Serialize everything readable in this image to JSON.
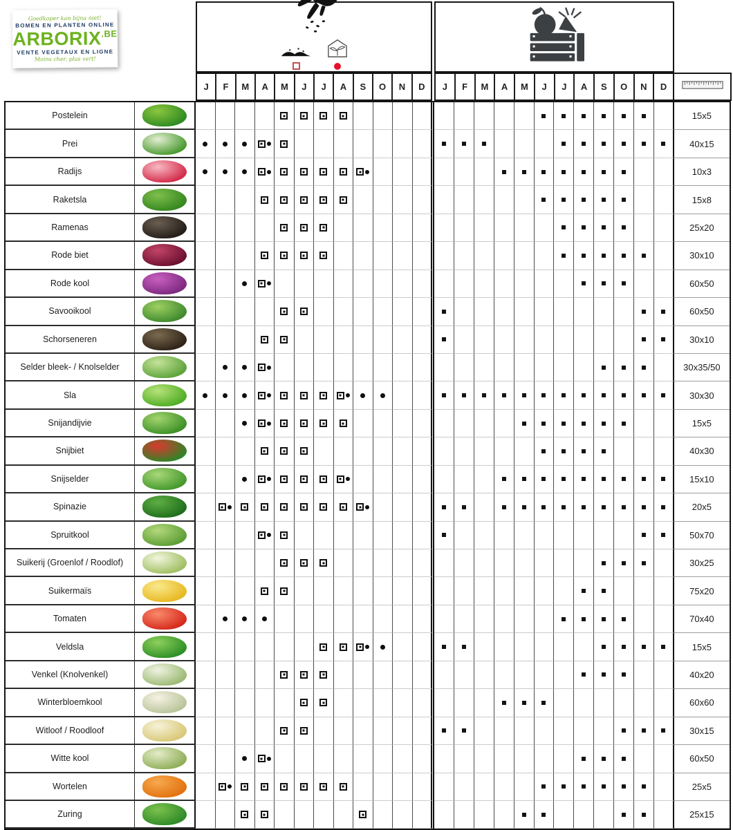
{
  "logo": {
    "tagline_top": "Goedkoper kan bijna niet!",
    "line_nl": "BOMEN EN PLANTEN ONLINE",
    "brand": "ARBORIX",
    "brand_tld": ".BE",
    "line_fr": "VENTE VEGETAUX EN LIGNE",
    "tagline_bottom": "Moins cher, plus vert!"
  },
  "legend": {
    "sow_outdoor_square_color": "#c0504d",
    "sow_indoor_dot_color": "#e8112d",
    "marker_key": {
      "b": "open-square-marker: direct sowing outdoors",
      "d": "dot-marker: sowing under glass / indoors",
      "bd": "open-square plus dot",
      "s": "filled-square-marker: harvest month"
    }
  },
  "header_icons": [
    "hand-sowing-seeds-icon",
    "soil-mound-icon",
    "greenhouse-icon",
    "harvest-crate-icon",
    "ruler-icon"
  ],
  "chart_data": {
    "type": "table",
    "title": "Sowing and harvesting calendar with plant spacing (Arborix.be)",
    "months": [
      "J",
      "F",
      "M",
      "A",
      "M",
      "J",
      "J",
      "A",
      "S",
      "O",
      "N",
      "D"
    ],
    "column_groups": [
      "sowing",
      "harvest",
      "spacing"
    ],
    "rows": [
      {
        "name": "Postelein",
        "spacing": "15x5",
        "photo": "#2e8b22",
        "photo_hi": "#8cc63f",
        "sow": [
          "",
          "",
          "",
          "",
          "b",
          "b",
          "b",
          "b",
          "",
          "",
          "",
          ""
        ],
        "harvest": [
          "",
          "",
          "",
          "",
          "",
          "s",
          "s",
          "s",
          "s",
          "s",
          "s",
          ""
        ]
      },
      {
        "name": "Prei",
        "spacing": "40x15",
        "photo": "#4a9a30",
        "photo_hi": "#e4eed2",
        "sow": [
          "d",
          "d",
          "d",
          "bd",
          "b",
          "",
          "",
          "",
          "",
          "",
          "",
          ""
        ],
        "harvest": [
          "s",
          "s",
          "s",
          "",
          "",
          "",
          "s",
          "s",
          "s",
          "s",
          "s",
          "s"
        ]
      },
      {
        "name": "Radijs",
        "spacing": "10x3",
        "photo": "#d22b49",
        "photo_hi": "#f9b9c4",
        "sow": [
          "d",
          "d",
          "d",
          "bd",
          "b",
          "b",
          "b",
          "b",
          "bd",
          "",
          "",
          ""
        ],
        "harvest": [
          "",
          "",
          "",
          "s",
          "s",
          "s",
          "s",
          "s",
          "s",
          "s",
          "",
          ""
        ]
      },
      {
        "name": "Raketsla",
        "spacing": "15x8",
        "photo": "#35871f",
        "photo_hi": "#7fbf4d",
        "sow": [
          "",
          "",
          "",
          "b",
          "b",
          "b",
          "b",
          "b",
          "",
          "",
          "",
          ""
        ],
        "harvest": [
          "",
          "",
          "",
          "",
          "",
          "s",
          "s",
          "s",
          "s",
          "s",
          "",
          ""
        ]
      },
      {
        "name": "Ramenas",
        "spacing": "25x20",
        "photo": "#241d18",
        "photo_hi": "#6b5f52",
        "sow": [
          "",
          "",
          "",
          "",
          "b",
          "b",
          "b",
          "",
          "",
          "",
          "",
          ""
        ],
        "harvest": [
          "",
          "",
          "",
          "",
          "",
          "",
          "s",
          "s",
          "s",
          "s",
          "",
          ""
        ]
      },
      {
        "name": "Rode biet",
        "spacing": "30x10",
        "photo": "#6d1030",
        "photo_hi": "#c24468",
        "sow": [
          "",
          "",
          "",
          "b",
          "b",
          "b",
          "b",
          "",
          "",
          "",
          "",
          ""
        ],
        "harvest": [
          "",
          "",
          "",
          "",
          "",
          "",
          "s",
          "s",
          "s",
          "s",
          "s",
          ""
        ]
      },
      {
        "name": "Rode kool",
        "spacing": "60x50",
        "photo": "#7d2a80",
        "photo_hi": "#c95fc0",
        "sow": [
          "",
          "",
          "d",
          "bd",
          "",
          "",
          "",
          "",
          "",
          "",
          "",
          ""
        ],
        "harvest": [
          "",
          "",
          "",
          "",
          "",
          "",
          "",
          "s",
          "s",
          "s",
          "",
          ""
        ]
      },
      {
        "name": "Savooikool",
        "spacing": "60x50",
        "photo": "#3f8a2e",
        "photo_hi": "#9ecf62",
        "sow": [
          "",
          "",
          "",
          "",
          "b",
          "b",
          "",
          "",
          "",
          "",
          "",
          ""
        ],
        "harvest": [
          "s",
          "",
          "",
          "",
          "",
          "",
          "",
          "",
          "",
          "",
          "s",
          "s"
        ]
      },
      {
        "name": "Schorseneren",
        "spacing": "30x10",
        "photo": "#2f2317",
        "photo_hi": "#7a6a50",
        "sow": [
          "",
          "",
          "",
          "b",
          "b",
          "",
          "",
          "",
          "",
          "",
          "",
          ""
        ],
        "harvest": [
          "s",
          "",
          "",
          "",
          "",
          "",
          "",
          "",
          "",
          "",
          "s",
          "s"
        ]
      },
      {
        "name": "Selder bleek- / Knolselder",
        "spacing": "30x35/50",
        "photo": "#5da33a",
        "photo_hi": "#c6e39a",
        "sow": [
          "",
          "d",
          "d",
          "bd",
          "",
          "",
          "",
          "",
          "",
          "",
          "",
          ""
        ],
        "harvest": [
          "",
          "",
          "",
          "",
          "",
          "",
          "",
          "",
          "s",
          "s",
          "s",
          ""
        ]
      },
      {
        "name": "Sla",
        "spacing": "30x30",
        "photo": "#4fae25",
        "photo_hi": "#b8e27a",
        "sow": [
          "d",
          "d",
          "d",
          "bd",
          "b",
          "b",
          "b",
          "bd",
          "d",
          "d",
          "",
          ""
        ],
        "harvest": [
          "s",
          "s",
          "s",
          "s",
          "s",
          "s",
          "s",
          "s",
          "s",
          "s",
          "s",
          "s"
        ]
      },
      {
        "name": "Snijandijvie",
        "spacing": "15x5",
        "photo": "#3d9127",
        "photo_hi": "#a3d46e",
        "sow": [
          "",
          "",
          "d",
          "bd",
          "b",
          "b",
          "b",
          "b",
          "",
          "",
          "",
          ""
        ],
        "harvest": [
          "",
          "",
          "",
          "",
          "s",
          "s",
          "s",
          "s",
          "s",
          "s",
          "",
          ""
        ]
      },
      {
        "name": "Snijbiet",
        "spacing": "40x30",
        "photo": "#2f8526",
        "photo_hi": "#d9392f",
        "sow": [
          "",
          "",
          "",
          "b",
          "b",
          "b",
          "",
          "",
          "",
          "",
          "",
          ""
        ],
        "harvest": [
          "",
          "",
          "",
          "",
          "",
          "s",
          "s",
          "s",
          "s",
          "",
          "",
          ""
        ]
      },
      {
        "name": "Snijselder",
        "spacing": "15x10",
        "photo": "#44982c",
        "photo_hi": "#a8d878",
        "sow": [
          "",
          "",
          "d",
          "bd",
          "b",
          "b",
          "b",
          "bd",
          "",
          "",
          "",
          ""
        ],
        "harvest": [
          "",
          "",
          "",
          "s",
          "s",
          "s",
          "s",
          "s",
          "s",
          "s",
          "s",
          "s"
        ]
      },
      {
        "name": "Spinazie",
        "spacing": "20x5",
        "photo": "#1f6f1d",
        "photo_hi": "#5fae44",
        "sow": [
          "",
          "bd",
          "b",
          "b",
          "b",
          "b",
          "b",
          "b",
          "bd",
          "",
          "",
          ""
        ],
        "harvest": [
          "s",
          "s",
          "",
          "s",
          "s",
          "s",
          "s",
          "s",
          "s",
          "s",
          "s",
          "s"
        ]
      },
      {
        "name": "Spruitkool",
        "spacing": "50x70",
        "photo": "#5d9e35",
        "photo_hi": "#b4d87c",
        "sow": [
          "",
          "",
          "",
          "bd",
          "b",
          "",
          "",
          "",
          "",
          "",
          "",
          ""
        ],
        "harvest": [
          "s",
          "",
          "",
          "",
          "",
          "",
          "",
          "",
          "",
          "",
          "s",
          "s"
        ]
      },
      {
        "name": "Suikerij (Groenlof / Roodlof)",
        "spacing": "30x25",
        "photo": "#9fbf63",
        "photo_hi": "#f2f6dd",
        "sow": [
          "",
          "",
          "",
          "",
          "b",
          "b",
          "b",
          "",
          "",
          "",
          "",
          ""
        ],
        "harvest": [
          "",
          "",
          "",
          "",
          "",
          "",
          "",
          "",
          "s",
          "s",
          "s",
          ""
        ]
      },
      {
        "name": "Suikermaïs",
        "spacing": "75x20",
        "photo": "#e8b821",
        "photo_hi": "#f9e98c",
        "sow": [
          "",
          "",
          "",
          "b",
          "b",
          "",
          "",
          "",
          "",
          "",
          "",
          ""
        ],
        "harvest": [
          "",
          "",
          "",
          "",
          "",
          "",
          "",
          "s",
          "s",
          "",
          "",
          ""
        ]
      },
      {
        "name": "Tomaten",
        "spacing": "70x40",
        "photo": "#d6291c",
        "photo_hi": "#f98a6a",
        "sow": [
          "",
          "d",
          "d",
          "d",
          "",
          "",
          "",
          "",
          "",
          "",
          "",
          ""
        ],
        "harvest": [
          "",
          "",
          "",
          "",
          "",
          "",
          "s",
          "s",
          "s",
          "s",
          "",
          ""
        ]
      },
      {
        "name": "Veldsla",
        "spacing": "15x5",
        "photo": "#2f8f25",
        "photo_hi": "#8ed05e",
        "sow": [
          "",
          "",
          "",
          "",
          "",
          "",
          "b",
          "b",
          "bd",
          "d",
          "",
          ""
        ],
        "harvest": [
          "s",
          "s",
          "",
          "",
          "",
          "",
          "",
          "",
          "s",
          "s",
          "s",
          "s"
        ]
      },
      {
        "name": "Venkel (Knolvenkel)",
        "spacing": "40x20",
        "photo": "#9cba74",
        "photo_hi": "#f0f3e2",
        "sow": [
          "",
          "",
          "",
          "",
          "b",
          "b",
          "b",
          "",
          "",
          "",
          "",
          ""
        ],
        "harvest": [
          "",
          "",
          "",
          "",
          "",
          "",
          "",
          "s",
          "s",
          "s",
          "",
          ""
        ]
      },
      {
        "name": "Winterbloemkool",
        "spacing": "60x60",
        "photo": "#b9c49a",
        "photo_hi": "#f6f2e3",
        "sow": [
          "",
          "",
          "",
          "",
          "",
          "b",
          "b",
          "",
          "",
          "",
          "",
          ""
        ],
        "harvest": [
          "",
          "",
          "",
          "s",
          "s",
          "s",
          "",
          "",
          "",
          "",
          "",
          ""
        ]
      },
      {
        "name": "Witloof / Roodloof",
        "spacing": "30x15",
        "photo": "#d8c878",
        "photo_hi": "#f7f2d8",
        "sow": [
          "",
          "",
          "",
          "",
          "b",
          "b",
          "",
          "",
          "",
          "",
          "",
          ""
        ],
        "harvest": [
          "s",
          "s",
          "",
          "",
          "",
          "",
          "",
          "",
          "",
          "s",
          "s",
          "s"
        ]
      },
      {
        "name": "Witte kool",
        "spacing": "60x50",
        "photo": "#8fae58",
        "photo_hi": "#e4ecc8",
        "sow": [
          "",
          "",
          "d",
          "bd",
          "",
          "",
          "",
          "",
          "",
          "",
          "",
          ""
        ],
        "harvest": [
          "",
          "",
          "",
          "",
          "",
          "",
          "",
          "s",
          "s",
          "s",
          "",
          ""
        ]
      },
      {
        "name": "Wortelen",
        "spacing": "25x5",
        "photo": "#e2720f",
        "photo_hi": "#f7a94f",
        "sow": [
          "",
          "bd",
          "b",
          "b",
          "b",
          "b",
          "b",
          "b",
          "",
          "",
          "",
          ""
        ],
        "harvest": [
          "",
          "",
          "",
          "",
          "",
          "s",
          "s",
          "s",
          "s",
          "s",
          "s",
          ""
        ]
      },
      {
        "name": "Zuring",
        "spacing": "25x15",
        "photo": "#2f8a28",
        "photo_hi": "#7cc24e",
        "sow": [
          "",
          "",
          "b",
          "b",
          "",
          "",
          "",
          "",
          "b",
          "",
          "",
          ""
        ],
        "harvest": [
          "",
          "",
          "",
          "",
          "s",
          "s",
          "",
          "",
          "",
          "s",
          "s",
          ""
        ]
      }
    ]
  }
}
